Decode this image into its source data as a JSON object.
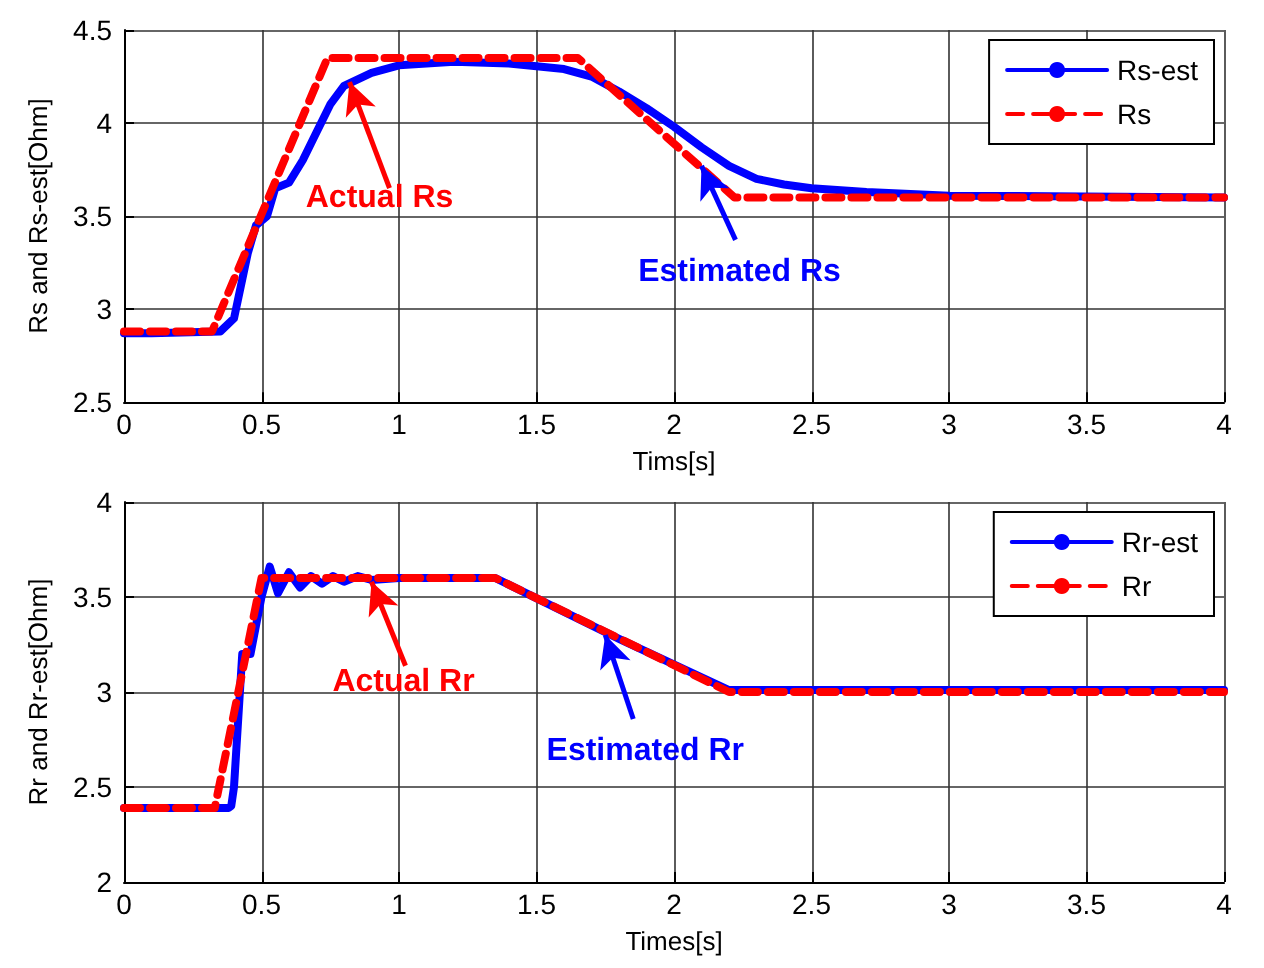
{
  "chart_data": [
    {
      "type": "line",
      "xlabel": "Tims[s]",
      "ylabel": "Rs and Rs-est[Ohm]",
      "xlim": [
        0,
        4
      ],
      "xticks": [
        0,
        0.5,
        1,
        1.5,
        2,
        2.5,
        3,
        3.5,
        4
      ],
      "ylim": [
        2.5,
        4.5
      ],
      "yticks": [
        2.5,
        3,
        3.5,
        4,
        4.5
      ],
      "grid": true,
      "legend": "top right",
      "marker": "none",
      "series": [
        {
          "name": "Rs-est",
          "color": "#0000ff",
          "line_style": "solid",
          "x": [
            0,
            0.1,
            0.35,
            0.4,
            0.45,
            0.48,
            0.52,
            0.55,
            0.6,
            0.65,
            0.7,
            0.75,
            0.8,
            0.9,
            1.0,
            1.2,
            1.4,
            1.6,
            1.7,
            1.8,
            1.9,
            2.0,
            2.1,
            2.2,
            2.3,
            2.4,
            2.5,
            2.7,
            3.0,
            4.0
          ],
          "values": [
            2.87,
            2.87,
            2.88,
            2.95,
            3.3,
            3.45,
            3.5,
            3.65,
            3.68,
            3.8,
            3.95,
            4.1,
            4.2,
            4.27,
            4.31,
            4.33,
            4.32,
            4.29,
            4.25,
            4.17,
            4.08,
            3.98,
            3.87,
            3.77,
            3.7,
            3.67,
            3.65,
            3.63,
            3.61,
            3.6
          ]
        },
        {
          "name": "Rs",
          "color": "#ff0000",
          "line_style": "dashed",
          "x": [
            0,
            0.32,
            0.74,
            1.65,
            2.22,
            4
          ],
          "values": [
            2.88,
            2.88,
            4.35,
            4.35,
            3.6,
            3.6
          ]
        }
      ],
      "annotations": [
        {
          "text": "Actual Rs",
          "x": 0.82,
          "y": 4.22
        },
        {
          "text": "Estimated Rs",
          "x": 2.1,
          "y": 3.77
        }
      ]
    },
    {
      "type": "line",
      "xlabel": "Times[s]",
      "ylabel": "Rr and Rr-est[Ohm]",
      "xlim": [
        0,
        4
      ],
      "xticks": [
        0,
        0.5,
        1,
        1.5,
        2,
        2.5,
        3,
        3.5,
        4
      ],
      "ylim": [
        2,
        4
      ],
      "yticks": [
        2,
        2.5,
        3,
        3.5,
        4
      ],
      "grid": true,
      "legend": "top right",
      "marker": "none",
      "series": [
        {
          "name": "Rr-est",
          "color": "#0000ff",
          "line_style": "solid",
          "x": [
            0,
            0.38,
            0.39,
            0.4,
            0.43,
            0.46,
            0.5,
            0.53,
            0.56,
            0.6,
            0.64,
            0.68,
            0.72,
            0.76,
            0.8,
            0.85,
            0.9,
            1.0,
            1.35,
            1.8,
            2.2,
            4.0
          ],
          "values": [
            2.39,
            2.39,
            2.4,
            2.5,
            3.2,
            3.2,
            3.5,
            3.66,
            3.52,
            3.63,
            3.55,
            3.61,
            3.57,
            3.61,
            3.58,
            3.61,
            3.59,
            3.6,
            3.6,
            3.28,
            3.01,
            3.01
          ]
        },
        {
          "name": "Rr",
          "color": "#ff0000",
          "line_style": "dashed",
          "x": [
            0,
            0.33,
            0.5,
            1.35,
            2.2,
            4
          ],
          "values": [
            2.39,
            2.39,
            3.6,
            3.6,
            3.0,
            3.0
          ]
        }
      ],
      "annotations": [
        {
          "text": "Actual Rr",
          "x": 0.9,
          "y": 3.58
        },
        {
          "text": "Estimated Rr",
          "x": 1.75,
          "y": 3.3
        }
      ]
    }
  ]
}
